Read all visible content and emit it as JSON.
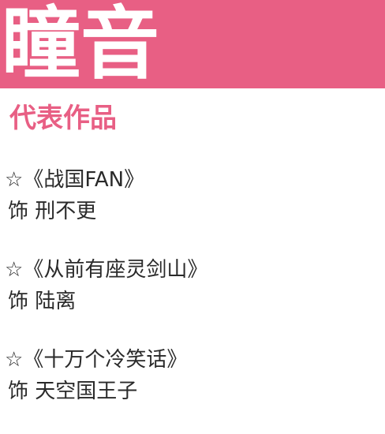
{
  "colors": {
    "accent": "#e85f84",
    "text": "#2a2a2a"
  },
  "header": {
    "name": "瞳音"
  },
  "section": {
    "heading": "代表作品"
  },
  "works": [
    {
      "marker": "☆",
      "title": "《战国FAN》",
      "role_prefix": "饰",
      "role": "刑不更"
    },
    {
      "marker": "☆",
      "title": "《从前有座灵剑山》",
      "role_prefix": "饰",
      "role": "陆离"
    },
    {
      "marker": "☆",
      "title": "《十万个冷笑话》",
      "role_prefix": "饰",
      "role": "天空国王子"
    }
  ]
}
